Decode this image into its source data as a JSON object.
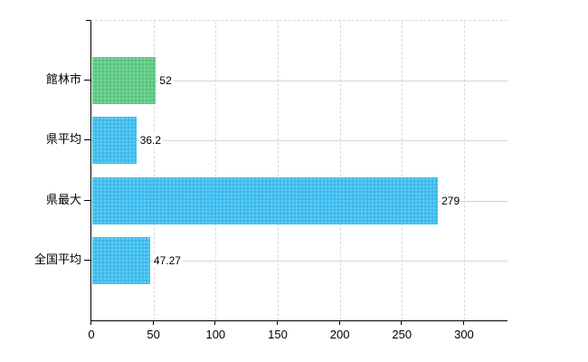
{
  "chart_data": {
    "type": "bar",
    "orientation": "horizontal",
    "title": "",
    "xlabel": "",
    "ylabel": "",
    "categories": [
      "館林市",
      "県平均",
      "県最大",
      "全国平均"
    ],
    "values": [
      52,
      36.2,
      279,
      47.27
    ],
    "value_labels": [
      "52",
      "36.2",
      "279",
      "47.27"
    ],
    "bar_colors": [
      "#5ecb85",
      "#41bff0",
      "#41bff0",
      "#41bff0"
    ],
    "xlim": [
      0,
      335
    ],
    "x_ticks": [
      0,
      50,
      100,
      150,
      200,
      250,
      300
    ],
    "x_tick_labels": [
      "0",
      "50",
      "100",
      "150",
      "200",
      "250",
      "300"
    ],
    "grid": true,
    "legend": false,
    "colors": {
      "accent_green": "#5ecb85",
      "accent_blue": "#41bff0",
      "gridline": "#d9d9d9",
      "axis": "#000000",
      "text": "#000000",
      "background": "#ffffff"
    }
  }
}
